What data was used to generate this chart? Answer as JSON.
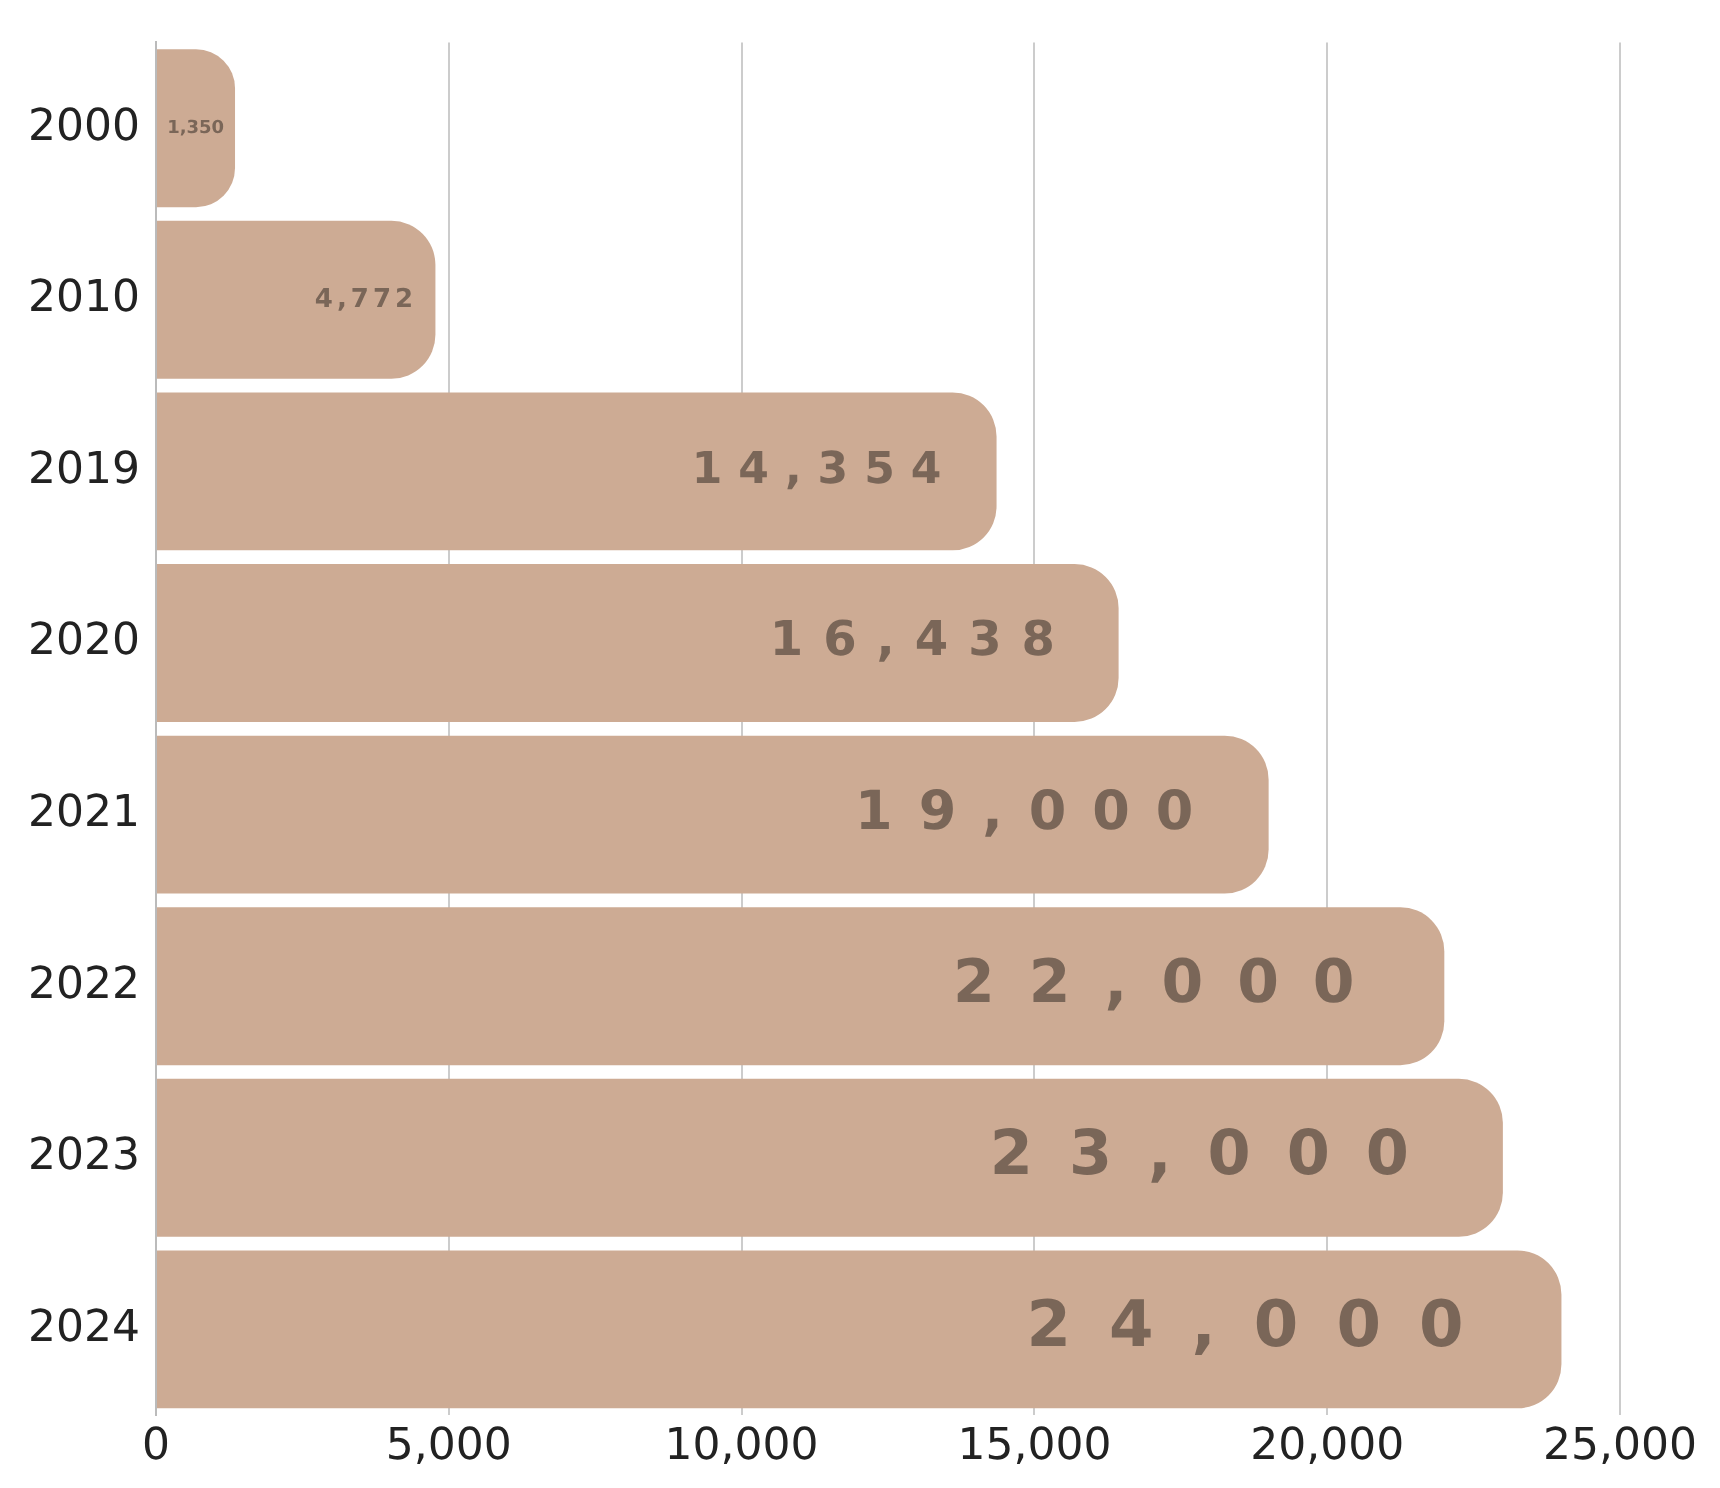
{
  "chart_data": {
    "type": "bar",
    "orientation": "horizontal",
    "categories": [
      "2000",
      "2010",
      "2019",
      "2020",
      "2021",
      "2022",
      "2023",
      "2024"
    ],
    "values": [
      1350,
      4772,
      14354,
      16438,
      19000,
      22000,
      23000,
      24000
    ],
    "value_labels": [
      "1,350",
      "4,772",
      "14,354",
      "16,438",
      "19,000",
      "22,000",
      "23,000",
      "24,000"
    ],
    "color": "#cdab94",
    "xlim": [
      0,
      25000
    ],
    "xticks": [
      0,
      {
        "value": 5000,
        "label": "5,000"
      },
      {
        "value": 10000,
        "label": "10,000"
      },
      {
        "value": 15000,
        "label": "15,000"
      },
      {
        "value": 20000,
        "label": "20,000"
      },
      {
        "value": 25000,
        "label": "25,000"
      }
    ],
    "grid": "x",
    "legend": false
  }
}
